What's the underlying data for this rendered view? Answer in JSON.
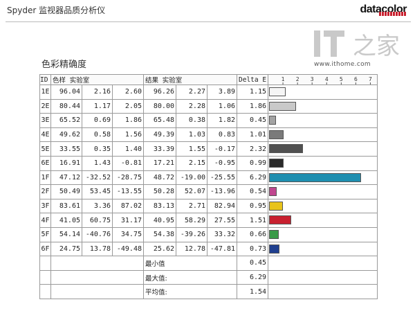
{
  "header": {
    "app_title": "Spyder 监视器品质分析仪",
    "brand": "datacolor"
  },
  "watermark": {
    "logo_text": "IT",
    "logo_char": "之家",
    "url": "www.ithome.com"
  },
  "section_title": "色彩精确度",
  "table": {
    "col_id": "ID",
    "col_sample": "色样 实验室",
    "col_result": "结果 实验室",
    "col_delta": "Delta E",
    "axis_ticks": [
      "1",
      "2",
      "3",
      "4",
      "5",
      "6",
      "7"
    ],
    "rows": [
      {
        "id": "1E",
        "s": [
          "96.04",
          "2.16",
          "2.60"
        ],
        "r": [
          "96.26",
          "2.27",
          "3.89"
        ],
        "de": "1.15",
        "color": "#f5f5f5"
      },
      {
        "id": "2E",
        "s": [
          "80.44",
          "1.17",
          "2.05"
        ],
        "r": [
          "80.00",
          "2.28",
          "1.06"
        ],
        "de": "1.86",
        "color": "#c9c9c9"
      },
      {
        "id": "3E",
        "s": [
          "65.52",
          "0.69",
          "1.86"
        ],
        "r": [
          "65.48",
          "0.38",
          "1.82"
        ],
        "de": "0.45",
        "color": "#a3a3a3"
      },
      {
        "id": "4E",
        "s": [
          "49.62",
          "0.58",
          "1.56"
        ],
        "r": [
          "49.39",
          "1.03",
          "0.83"
        ],
        "de": "1.01",
        "color": "#7a7a7a"
      },
      {
        "id": "5E",
        "s": [
          "33.55",
          "0.35",
          "1.40"
        ],
        "r": [
          "33.39",
          "1.55",
          "-0.17"
        ],
        "de": "2.32",
        "color": "#505050"
      },
      {
        "id": "6E",
        "s": [
          "16.91",
          "1.43",
          "-0.81"
        ],
        "r": [
          "17.21",
          "2.15",
          "-0.95"
        ],
        "de": "0.99",
        "color": "#2a2a2a"
      },
      {
        "id": "1F",
        "s": [
          "47.12",
          "-32.52",
          "-28.75"
        ],
        "r": [
          "48.72",
          "-19.00",
          "-25.55"
        ],
        "de": "6.29",
        "color": "#1f8fb0"
      },
      {
        "id": "2F",
        "s": [
          "50.49",
          "53.45",
          "-13.55"
        ],
        "r": [
          "50.28",
          "52.07",
          "-13.96"
        ],
        "de": "0.54",
        "color": "#c0478f"
      },
      {
        "id": "3F",
        "s": [
          "83.61",
          "3.36",
          "87.02"
        ],
        "r": [
          "83.13",
          "2.71",
          "82.94"
        ],
        "de": "0.95",
        "color": "#e8c31a"
      },
      {
        "id": "4F",
        "s": [
          "41.05",
          "60.75",
          "31.17"
        ],
        "r": [
          "40.95",
          "58.29",
          "27.55"
        ],
        "de": "1.51",
        "color": "#c8202f"
      },
      {
        "id": "5F",
        "s": [
          "54.14",
          "-40.76",
          "34.75"
        ],
        "r": [
          "54.38",
          "-39.26",
          "33.32"
        ],
        "de": "0.66",
        "color": "#3a9a48"
      },
      {
        "id": "6F",
        "s": [
          "24.75",
          "13.78",
          "-49.48"
        ],
        "r": [
          "25.62",
          "12.78",
          "-47.81"
        ],
        "de": "0.73",
        "color": "#1f3f8f"
      }
    ],
    "summary": [
      {
        "label": "最小值",
        "value": "0.45"
      },
      {
        "label": "最大值:",
        "value": "6.29"
      },
      {
        "label": "平均值:",
        "value": "1.54"
      }
    ]
  },
  "chart_data": {
    "type": "bar",
    "categories": [
      "1E",
      "2E",
      "3E",
      "4E",
      "5E",
      "6E",
      "1F",
      "2F",
      "3F",
      "4F",
      "5F",
      "6F"
    ],
    "values": [
      1.15,
      1.86,
      0.45,
      1.01,
      2.32,
      0.99,
      6.29,
      0.54,
      0.95,
      1.51,
      0.66,
      0.73
    ],
    "colors": [
      "#f5f5f5",
      "#c9c9c9",
      "#a3a3a3",
      "#7a7a7a",
      "#505050",
      "#2a2a2a",
      "#1f8fb0",
      "#c0478f",
      "#e8c31a",
      "#c8202f",
      "#3a9a48",
      "#1f3f8f"
    ],
    "xlim": [
      0,
      7.5
    ]
  }
}
